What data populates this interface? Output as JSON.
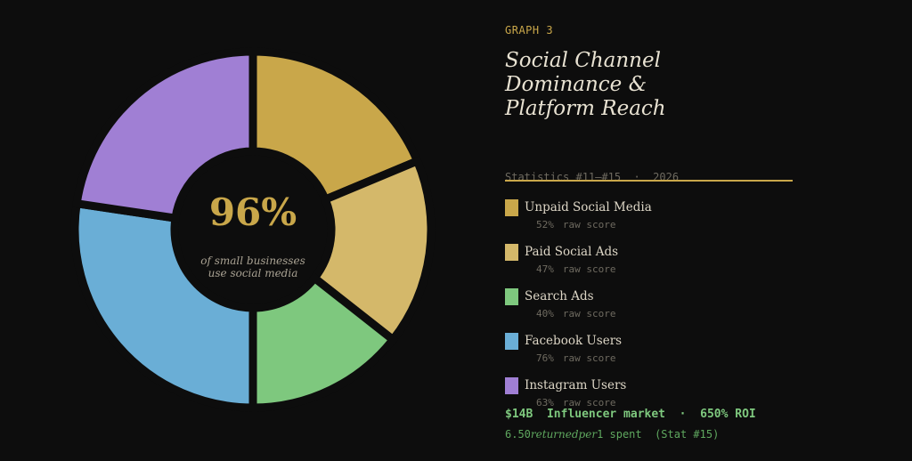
{
  "eyebrow": "GRAPH 3",
  "chart_data": {
    "type": "donut",
    "title": "Social Channel Dominance & Platform Reach",
    "subtitle": "Statistics #11–#15  ·  2026",
    "center_value": "96%",
    "center_caption": "of small businesses use social media",
    "categories": [
      "Unpaid Social Media",
      "Paid Social Ads",
      "Search Ads",
      "Facebook Users",
      "Instagram Users"
    ],
    "values": [
      52,
      47,
      40,
      76,
      63
    ],
    "value_labels": [
      "52%",
      "47%",
      "40%",
      "76%",
      "63%"
    ],
    "value_suffix": "raw score",
    "colors": [
      "#c9a74a",
      "#d4b86a",
      "#7ec87e",
      "#6aaed6",
      "#a07fd4"
    ]
  },
  "footer": {
    "headline": "$14B  Influencer market  ·  650% ROI",
    "note": [
      "6.50",
      "returnedper",
      "1 spent  (Stat #15)"
    ]
  }
}
